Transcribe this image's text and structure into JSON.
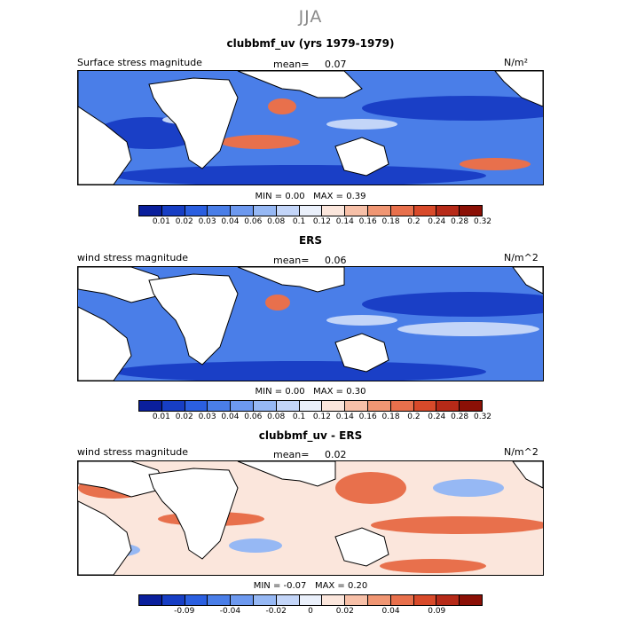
{
  "season_title": "JJA",
  "palette_std": [
    "#0a1f9c",
    "#173ec4",
    "#2b5fe0",
    "#4a7ee8",
    "#6d99ef",
    "#96b8f4",
    "#c3d5f8",
    "#eaf0fb",
    "#fbe6dc",
    "#f7c0a8",
    "#f09673",
    "#e8704c",
    "#d84a2a",
    "#b62a18",
    "#8b1006"
  ],
  "palette_diff": [
    "#0a1f9c",
    "#173ec4",
    "#2b5fe0",
    "#4a7ee8",
    "#6d99ef",
    "#96b8f4",
    "#c3d5f8",
    "#eaf0fb",
    "#fbe6dc",
    "#f7c0a8",
    "#f09673",
    "#e8704c",
    "#d84a2a",
    "#b62a18",
    "#8b1006"
  ],
  "panels": [
    {
      "title": "clubbmf_uv (yrs 1979-1979)",
      "left_label": "Surface stress magnitude",
      "mean_label": "mean=",
      "mean_value": "0.07",
      "units": "N/m²",
      "min_label": "MIN =",
      "min_value": "0.00",
      "max_label": "MAX =",
      "max_value": "0.39",
      "ticks": [
        "0.01",
        "0.02",
        "0.03",
        "0.04",
        "0.06",
        "0.08",
        "0.1",
        "0.12",
        "0.14",
        "0.16",
        "0.18",
        "0.2",
        "0.24",
        "0.28",
        "0.32"
      ]
    },
    {
      "title": "ERS",
      "left_label": "wind stress magnitude",
      "mean_label": "mean=",
      "mean_value": "0.06",
      "units": "N/m^2",
      "min_label": "MIN =",
      "min_value": "0.00",
      "max_label": "MAX =",
      "max_value": "0.30",
      "ticks": [
        "0.01",
        "0.02",
        "0.03",
        "0.04",
        "0.06",
        "0.08",
        "0.1",
        "0.12",
        "0.14",
        "0.16",
        "0.18",
        "0.2",
        "0.24",
        "0.28",
        "0.32"
      ]
    },
    {
      "title": "clubbmf_uv - ERS",
      "left_label": "wind stress magnitude",
      "mean_label": "mean=",
      "mean_value": "0.02",
      "units": "N/m^2",
      "min_label": "MIN =",
      "min_value": "-0.07",
      "max_label": "MAX =",
      "max_value": "0.20",
      "ticks": [
        "-0.09",
        "-0.04",
        "-0.02",
        "0",
        "0.02",
        "0.04",
        "0.09"
      ]
    }
  ]
}
